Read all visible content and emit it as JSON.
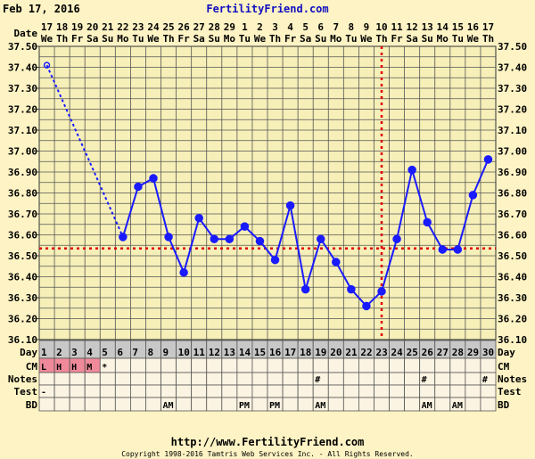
{
  "header": {
    "date": "Feb 17, 2016",
    "site": "FertilityFriend.com"
  },
  "footer": {
    "url": "http://www.FertilityFriend.com",
    "copyright": "Copyright 1998-2016 Tamtris Web Services Inc. - All Rights Reserved."
  },
  "colors": {
    "background": "#fdf3c4",
    "plot": "#f6efb8",
    "line": "#1a1aff",
    "coverline": "#e00000",
    "day_row": "#c8c8c8",
    "cell": "#fcf4e2",
    "cm_menstrual": "#f08a9a"
  },
  "chart_data": {
    "type": "line",
    "row_labels": {
      "date": "Date",
      "day": "Day",
      "cm": "CM",
      "notes": "Notes",
      "test": "Test",
      "bd": "BD"
    },
    "dates": [
      "17",
      "18",
      "19",
      "20",
      "21",
      "22",
      "23",
      "24",
      "25",
      "26",
      "27",
      "28",
      "29",
      "1",
      "2",
      "3",
      "4",
      "5",
      "6",
      "7",
      "8",
      "9",
      "10",
      "11",
      "12",
      "13",
      "14",
      "15",
      "16",
      "17"
    ],
    "weekdays": [
      "We",
      "Th",
      "Fr",
      "Sa",
      "Su",
      "Mo",
      "Tu",
      "We",
      "Th",
      "Fr",
      "Sa",
      "Su",
      "Mo",
      "Tu",
      "We",
      "Th",
      "Fr",
      "Sa",
      "Su",
      "Mo",
      "Tu",
      "We",
      "Th",
      "Fr",
      "Sa",
      "Su",
      "Mo",
      "Tu",
      "We",
      "Th"
    ],
    "days": [
      1,
      2,
      3,
      4,
      5,
      6,
      7,
      8,
      9,
      10,
      11,
      12,
      13,
      14,
      15,
      16,
      17,
      18,
      19,
      20,
      21,
      22,
      23,
      24,
      25,
      26,
      27,
      28,
      29,
      30
    ],
    "yticks": [
      "37.50",
      "37.40",
      "37.30",
      "37.20",
      "37.10",
      "37.00",
      "36.90",
      "36.80",
      "36.70",
      "36.60",
      "36.50",
      "36.40",
      "36.30",
      "36.20",
      "36.10"
    ],
    "ylim": [
      36.1,
      37.5
    ],
    "temps": [
      37.41,
      null,
      null,
      null,
      null,
      36.59,
      36.83,
      36.87,
      36.59,
      36.42,
      36.68,
      36.58,
      36.58,
      36.64,
      36.57,
      36.48,
      36.74,
      36.34,
      36.58,
      36.47,
      36.34,
      36.26,
      36.33,
      36.58,
      36.91,
      36.66,
      36.53,
      36.53,
      36.79,
      36.96
    ],
    "open_points": [
      1
    ],
    "coverline": 36.535,
    "ovulation_day": 23,
    "grid": true,
    "cm": [
      "L",
      "H",
      "H",
      "M",
      "*",
      "",
      "",
      "",
      "",
      "",
      "",
      "",
      "",
      "",
      "",
      "",
      "",
      "",
      "",
      "",
      "",
      "",
      "",
      "",
      "",
      "",
      "",
      "",
      "",
      ""
    ],
    "cm_highlight": [
      1,
      2,
      3,
      4
    ],
    "notes": [
      "",
      "",
      "",
      "",
      "",
      "",
      "",
      "",
      "",
      "",
      "",
      "",
      "",
      "",
      "",
      "",
      "",
      "",
      "#",
      "",
      "",
      "",
      "",
      "",
      "",
      "#",
      "",
      "",
      "",
      "#"
    ],
    "test": [
      "-",
      "",
      "",
      "",
      "",
      "",
      "",
      "",
      "",
      "",
      "",
      "",
      "",
      "",
      "",
      "",
      "",
      "",
      "",
      "",
      "",
      "",
      "",
      "",
      "",
      "",
      "",
      "",
      "",
      ""
    ],
    "bd": [
      "",
      "",
      "",
      "",
      "",
      "",
      "",
      "",
      "AM",
      "",
      "",
      "",
      "",
      "PM",
      "",
      "PM",
      "",
      "",
      "AM",
      "",
      "",
      "",
      "",
      "",
      "",
      "AM",
      "",
      "AM",
      "",
      ""
    ]
  }
}
